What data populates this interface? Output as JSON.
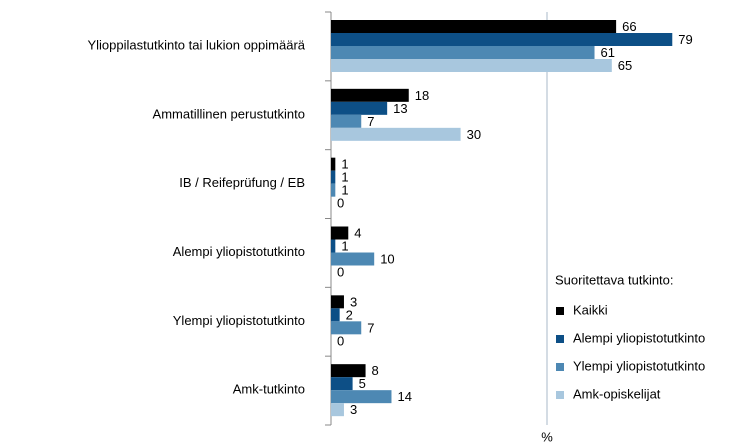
{
  "chart_data": {
    "type": "hbar",
    "categories": [
      "Ylioppilastutkinto tai lukion oppimäärä",
      "Ammatillinen perustutkinto",
      "IB / Reifeprüfung / EB",
      "Alempi yliopistotutkinto",
      "Ylempi yliopistotutkinto",
      "Amk-tutkinto"
    ],
    "series": [
      {
        "name": "Kaikki",
        "color": "#000000",
        "values": [
          66,
          18,
          1,
          4,
          3,
          8
        ]
      },
      {
        "name": "Alempi yliopistotutkinto",
        "color": "#0d4f86",
        "values": [
          79,
          13,
          1,
          1,
          2,
          5
        ]
      },
      {
        "name": "Ylempi yliopistotutkinto",
        "color": "#4d88b3",
        "values": [
          61,
          7,
          1,
          10,
          7,
          14
        ]
      },
      {
        "name": "Amk-opiskelijat",
        "color": "#a8c7de",
        "values": [
          65,
          30,
          0,
          0,
          0,
          3
        ]
      }
    ],
    "legend_title": "Suoritettava tutkinto:",
    "xlabel": "%",
    "xlim": [
      0,
      100
    ],
    "xticks": [
      0,
      50,
      100
    ],
    "grid": true
  }
}
